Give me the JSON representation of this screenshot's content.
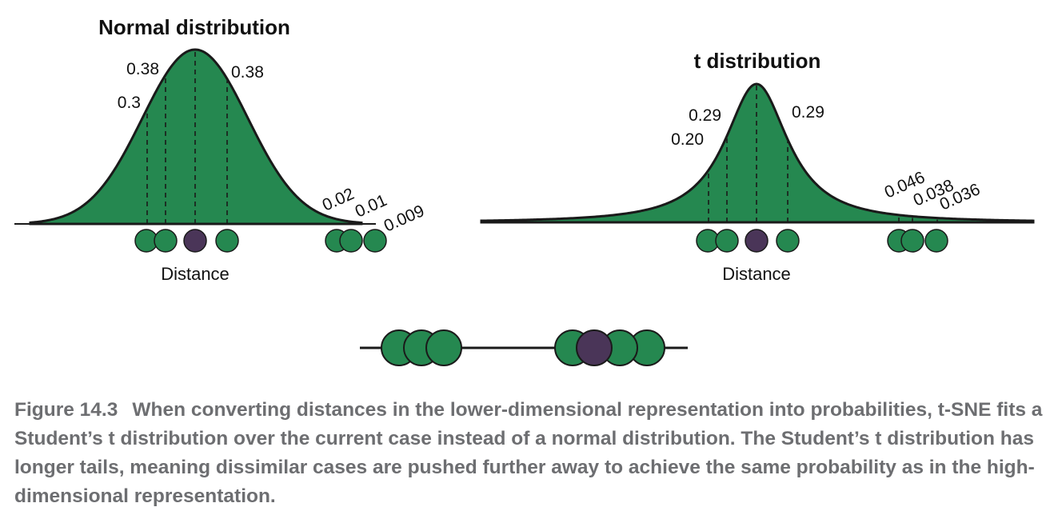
{
  "colors": {
    "green": "#258850",
    "purple": "#4a3558",
    "outline": "#1a1a1a",
    "caption": "#6d6e71"
  },
  "normal_panel": {
    "title": "Normal distribution",
    "xlabel": "Distance",
    "labels": [
      "0.38",
      "0.3",
      "0.38",
      "0.02",
      "0.01",
      "0.009"
    ]
  },
  "t_panel": {
    "title": "t distribution",
    "xlabel": "Distance",
    "labels": [
      "0.29",
      "0.20",
      "0.29",
      "0.046",
      "0.038",
      "0.036"
    ]
  },
  "caption": {
    "figure_number": "Figure 14.3",
    "text": "When converting distances in the lower-dimensional representation into probabilities, t-SNE fits a Student’s t distribution over the current case instead of a normal distribution. The Student’s t distribution has longer tails, meaning dissimilar cases are pushed further away to achieve the same probability as in the high-dimensional representation."
  }
}
